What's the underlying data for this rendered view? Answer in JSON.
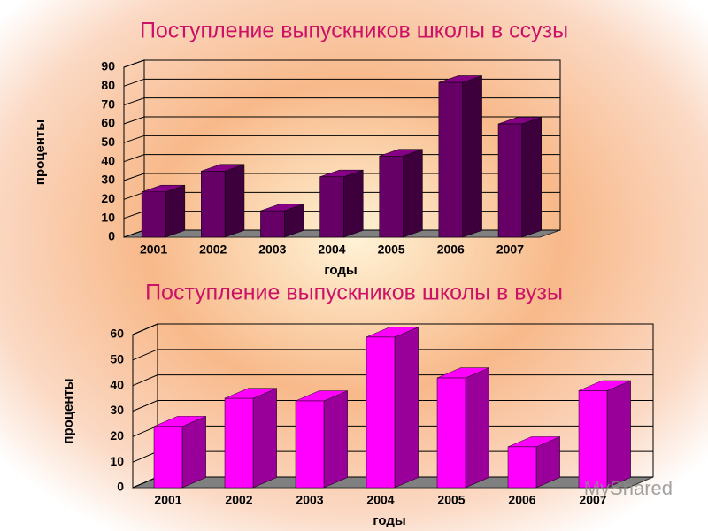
{
  "chart_data": [
    {
      "type": "bar3d",
      "title": "Поступление выпускников школы в ссузы",
      "y_label": "проценты",
      "x_label": "годы",
      "categories": [
        "2001",
        "2002",
        "2003",
        "2004",
        "2005",
        "2006",
        "2007"
      ],
      "values": [
        24,
        35,
        14,
        32,
        43,
        82,
        60
      ],
      "color": "#660066",
      "ylim": [
        0,
        90
      ],
      "yticks": [
        0,
        10,
        20,
        30,
        40,
        50,
        60,
        70,
        80,
        90
      ],
      "grid": true
    },
    {
      "type": "bar3d",
      "title": "Поступление выпускников школы в вузы",
      "y_label": "проценты",
      "x_label": "годы",
      "categories": [
        "2001",
        "2002",
        "2003",
        "2004",
        "2005",
        "2006",
        "2007"
      ],
      "values": [
        24,
        35,
        34,
        59,
        43,
        16,
        38
      ],
      "color": "#ff00ff",
      "ylim": [
        0,
        60
      ],
      "yticks": [
        0,
        10,
        20,
        30,
        40,
        50,
        60
      ],
      "grid": true
    }
  ],
  "watermark": "MyShared"
}
